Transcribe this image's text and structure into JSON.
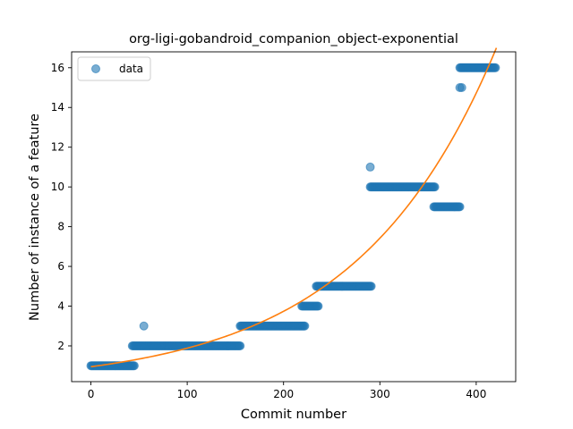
{
  "chart_data": {
    "type": "scatter",
    "title": "org-ligi-gobandroid_companion_object-exponential",
    "xlabel": "Commit number",
    "ylabel": "Number of instance of a feature",
    "xlim": [
      -20,
      441
    ],
    "ylim": [
      0.2,
      16.8
    ],
    "xticks": [
      0,
      100,
      200,
      300,
      400
    ],
    "yticks": [
      2,
      4,
      6,
      8,
      10,
      12,
      14,
      16
    ],
    "xtick_labels": [
      "0",
      "100",
      "200",
      "300",
      "400"
    ],
    "ytick_labels": [
      "2",
      "4",
      "6",
      "8",
      "10",
      "12",
      "14",
      "16"
    ],
    "legend": {
      "position": "top-left",
      "entries": [
        "data"
      ]
    },
    "grid": false,
    "colors": {
      "data": "#1f77b4",
      "fit": "#ff7f0e"
    },
    "series": [
      {
        "name": "data",
        "kind": "points",
        "segments": [
          {
            "x_start": 0,
            "x_end": 45,
            "y": 1
          },
          {
            "x_start": 43,
            "x_end": 155,
            "y": 2
          },
          {
            "x_start": 155,
            "x_end": 222,
            "y": 3
          },
          {
            "x_start": 219,
            "x_end": 236,
            "y": 4
          },
          {
            "x_start": 234,
            "x_end": 291,
            "y": 5
          },
          {
            "x_start": 290,
            "x_end": 357,
            "y": 10
          },
          {
            "x_start": 356,
            "x_end": 383,
            "y": 9
          },
          {
            "x_start": 383,
            "x_end": 420,
            "y": 16
          }
        ],
        "extra_points": [
          {
            "x": 55,
            "y": 3
          },
          {
            "x": 290,
            "y": 11
          },
          {
            "x": 383,
            "y": 15
          },
          {
            "x": 385,
            "y": 15
          }
        ]
      },
      {
        "kind": "exponential-fit",
        "x_range": [
          0,
          421
        ],
        "y_start": 0.95,
        "y_end": 17.0
      }
    ]
  }
}
